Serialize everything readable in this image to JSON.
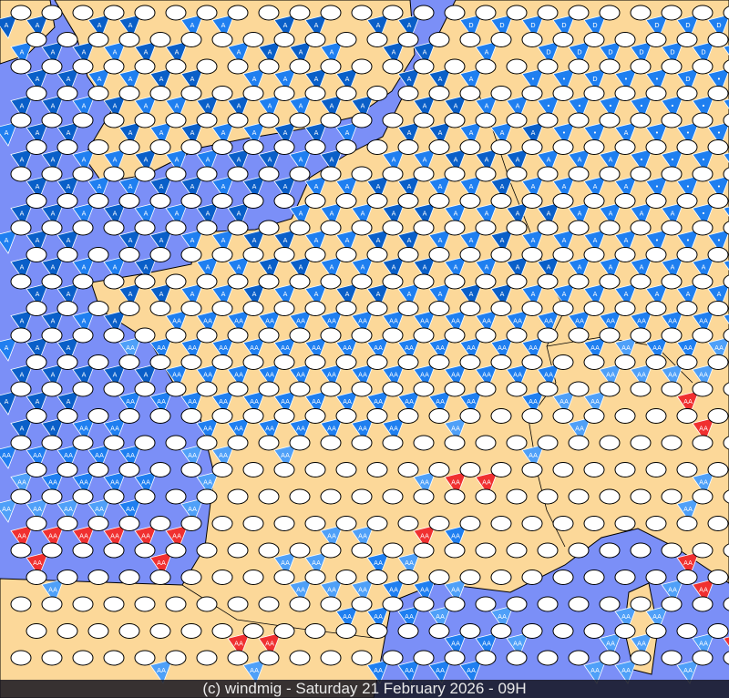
{
  "caption": "(c) windmig - Saturday 21 February 2026 - 09H",
  "colors": {
    "sea": "#7b8ff7",
    "land": "#fcd899",
    "border": "#000000",
    "marker_fill": "#ffffff",
    "flag_dark": "#0a5fc8",
    "flag_blue": "#1f7ff0",
    "flag_light": "#4fa0f8",
    "flag_red": "#f03030",
    "flag_pink": "#f07070"
  },
  "legend_codes": {
    "o": "calm",
    "A": "A dark",
    "B": "A blue",
    "D": "D light",
    "P": "drop light",
    "H": "AA blue",
    "L": "AA light",
    "R": "AA red"
  },
  "marker_rows": [
    "AAoAAoBBoAAoAAoDDDDDoDDD",
    "BAABAAoBAABoAAoBoDDDDDDD",
    "oAABBAAoBBAAoAABoPPDPPDP",
    "AABABBAABBAAoAABBPPPPPPP",
    "BAAoABABBAABoAABBAPPBPPP",
    "AABBABBAABAoBBAAABBBPPPP",
    "oAABBAABAABBAABBABBBBPPP",
    "AABABBAAoBBBAABBAABBBBPB",
    "BAAoAABBAABBAABBABBBBPPP",
    "AABBAoBBAABBAABBAABBBBBP",
    "oAAoAABBABBAABBAABBBBBBB",
    "AABAoHHHHHHHHHHHHHHHHHHH",
    "BAAoLHHHHHHHHHHHHHoHLHHL",
    "AAAAAHHHHHHHHHHHHHoLLLLo",
    "AAAoHHHHHHHHHHHHoHLLooRo",
    "AAHHooHHHHHHHoLoooLoooRo",
    "HHHHHoLLoLoooooooLoooooo",
    "LHHHHoLooooooLRRooooooLo",
    "LLLLHoLoooooooooooooooLo",
    "RRRRRRooooLLoRHooooooooo",
    "oRoooRoooLLoHLooooooooRo",
    "oLoooooooLLLHHLooooooLRo",
    "oooooooooooHHHLoLoooLLoo",
    "oooooooRRoooooHHLooLLoLR",
    "oooooLooLoooHHHHoooLLoLo"
  ]
}
